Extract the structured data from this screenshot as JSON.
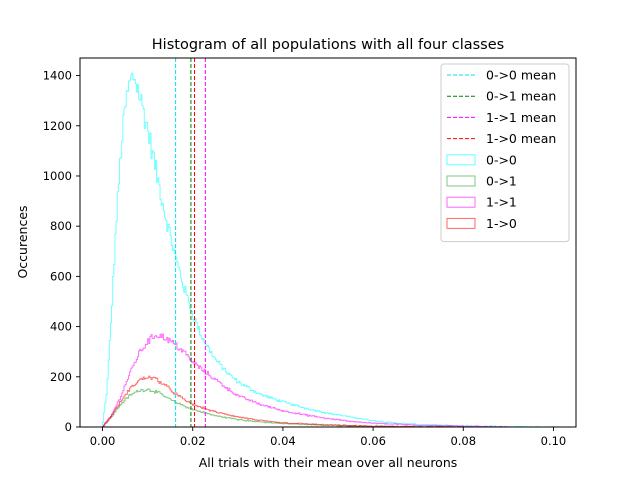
{
  "chart_data": {
    "type": "histogram",
    "title": "Histogram of all populations with all four classes",
    "xlabel": "All trials with their mean over all neurons",
    "ylabel": "Occurences",
    "xlim": [
      -0.005,
      0.105
    ],
    "ylim": [
      0,
      1470
    ],
    "xticks": [
      0.0,
      0.02,
      0.04,
      0.06,
      0.08,
      0.1
    ],
    "xtick_labels": [
      "0.00",
      "0.02",
      "0.04",
      "0.06",
      "0.08",
      "0.10"
    ],
    "yticks": [
      0,
      200,
      400,
      600,
      800,
      1000,
      1200,
      1400
    ],
    "ytick_labels": [
      "0",
      "200",
      "400",
      "600",
      "800",
      "1000",
      "1200",
      "1400"
    ],
    "grid": false,
    "legend_position": "top-right",
    "mean_lines": [
      {
        "name": "0->0 mean",
        "x": 0.0162,
        "color": "#00e5e5"
      },
      {
        "name": "0->1 mean",
        "x": 0.0196,
        "color": "#008000"
      },
      {
        "name": "1->1 mean",
        "x": 0.0228,
        "color": "#ff00ff"
      },
      {
        "name": "1->0 mean",
        "x": 0.0204,
        "color": "#ff0000"
      }
    ],
    "series": [
      {
        "name": "0->0",
        "color": "#00ffff",
        "x": [
          0.0,
          0.001,
          0.002,
          0.003,
          0.004,
          0.005,
          0.006,
          0.007,
          0.008,
          0.01,
          0.012,
          0.014,
          0.016,
          0.018,
          0.02,
          0.022,
          0.025,
          0.028,
          0.03,
          0.035,
          0.04,
          0.045,
          0.05,
          0.055,
          0.06,
          0.065,
          0.07,
          0.08,
          0.09,
          0.1
        ],
        "values": [
          0,
          150,
          450,
          800,
          1080,
          1270,
          1370,
          1400,
          1340,
          1190,
          1010,
          840,
          690,
          560,
          450,
          360,
          270,
          210,
          180,
          130,
          100,
          75,
          55,
          40,
          25,
          16,
          10,
          4,
          1,
          0
        ]
      },
      {
        "name": "0->1",
        "color": "#2ca02c",
        "x": [
          0.0,
          0.002,
          0.004,
          0.006,
          0.008,
          0.01,
          0.012,
          0.014,
          0.016,
          0.018,
          0.02,
          0.025,
          0.03,
          0.035,
          0.04,
          0.05,
          0.06,
          0.07,
          0.08
        ],
        "values": [
          0,
          40,
          90,
          125,
          145,
          150,
          140,
          120,
          100,
          85,
          70,
          45,
          30,
          20,
          14,
          7,
          3,
          1,
          0
        ]
      },
      {
        "name": "1->1",
        "color": "#ff00ff",
        "x": [
          0.0,
          0.002,
          0.004,
          0.006,
          0.008,
          0.01,
          0.012,
          0.014,
          0.016,
          0.018,
          0.02,
          0.022,
          0.025,
          0.028,
          0.03,
          0.035,
          0.04,
          0.045,
          0.05,
          0.055,
          0.06,
          0.07,
          0.08,
          0.09
        ],
        "values": [
          0,
          45,
          120,
          210,
          290,
          340,
          370,
          355,
          330,
          300,
          260,
          230,
          190,
          150,
          125,
          90,
          65,
          48,
          33,
          23,
          15,
          7,
          3,
          0
        ]
      },
      {
        "name": "1->0",
        "color": "#ff0000",
        "x": [
          0.0,
          0.002,
          0.004,
          0.006,
          0.008,
          0.01,
          0.012,
          0.014,
          0.016,
          0.018,
          0.02,
          0.025,
          0.03,
          0.035,
          0.04,
          0.05,
          0.06,
          0.07,
          0.08
        ],
        "values": [
          0,
          45,
          100,
          150,
          185,
          200,
          190,
          165,
          135,
          110,
          90,
          60,
          40,
          26,
          17,
          8,
          3,
          1,
          0
        ]
      }
    ]
  }
}
